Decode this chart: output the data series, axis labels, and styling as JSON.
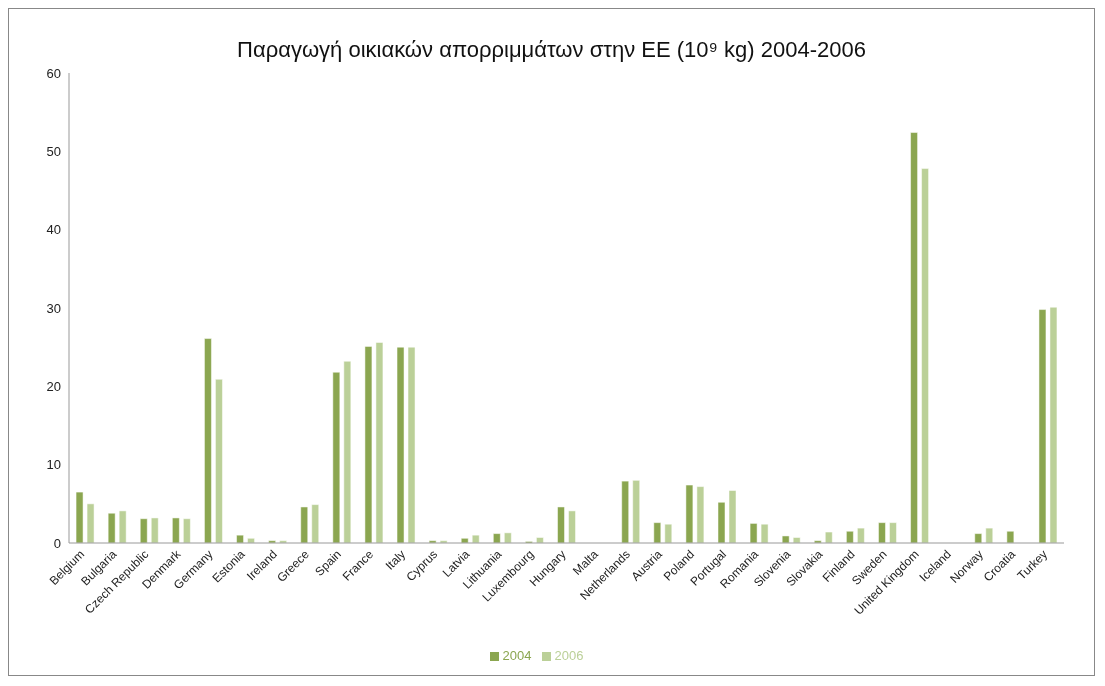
{
  "chart_data": {
    "type": "bar",
    "title": "Παραγωγή οικιακών απορριμμάτων στην ΕΕ (10⁹ kg) 2004-2006",
    "categories": [
      "Belgium",
      "Bulgaria",
      "Czech Republic",
      "Denmark",
      "Germany",
      "Estonia",
      "Ireland",
      "Greece",
      "Spain",
      "France",
      "Italy",
      "Cyprus",
      "Latvia",
      "Lithuania",
      "Luxembourg",
      "Hungary",
      "Malta",
      "Netherlands",
      "Austria",
      "Poland",
      "Portugal",
      "Romania",
      "Slovenia",
      "Slovakia",
      "Finland",
      "Sweden",
      "United Kingdom",
      "Iceland",
      "Norway",
      "Croatia",
      "Turkey"
    ],
    "series": [
      {
        "name": "2004",
        "color": "#8ba650",
        "values": [
          6.5,
          3.8,
          3.1,
          3.2,
          26.1,
          1.0,
          0.3,
          4.6,
          21.8,
          25.1,
          25.0,
          0.3,
          0.6,
          1.2,
          0.2,
          4.6,
          null,
          7.9,
          2.6,
          7.4,
          5.2,
          2.5,
          0.9,
          0.3,
          1.5,
          2.6,
          52.4,
          null,
          1.2,
          1.5,
          29.8
        ]
      },
      {
        "name": "2006",
        "color": "#bbd098",
        "values": [
          5.0,
          4.1,
          3.2,
          3.1,
          20.9,
          0.6,
          0.3,
          4.9,
          23.2,
          25.6,
          25.0,
          0.3,
          1.0,
          1.3,
          0.7,
          4.1,
          null,
          8.0,
          2.4,
          7.2,
          6.7,
          2.4,
          0.7,
          1.4,
          1.9,
          2.6,
          47.8,
          null,
          1.9,
          null,
          30.1
        ]
      }
    ],
    "ylim": [
      0,
      60
    ],
    "yticks": [
      0,
      10,
      20,
      30,
      40,
      50,
      60
    ],
    "grid": false,
    "legend": "bottom"
  }
}
